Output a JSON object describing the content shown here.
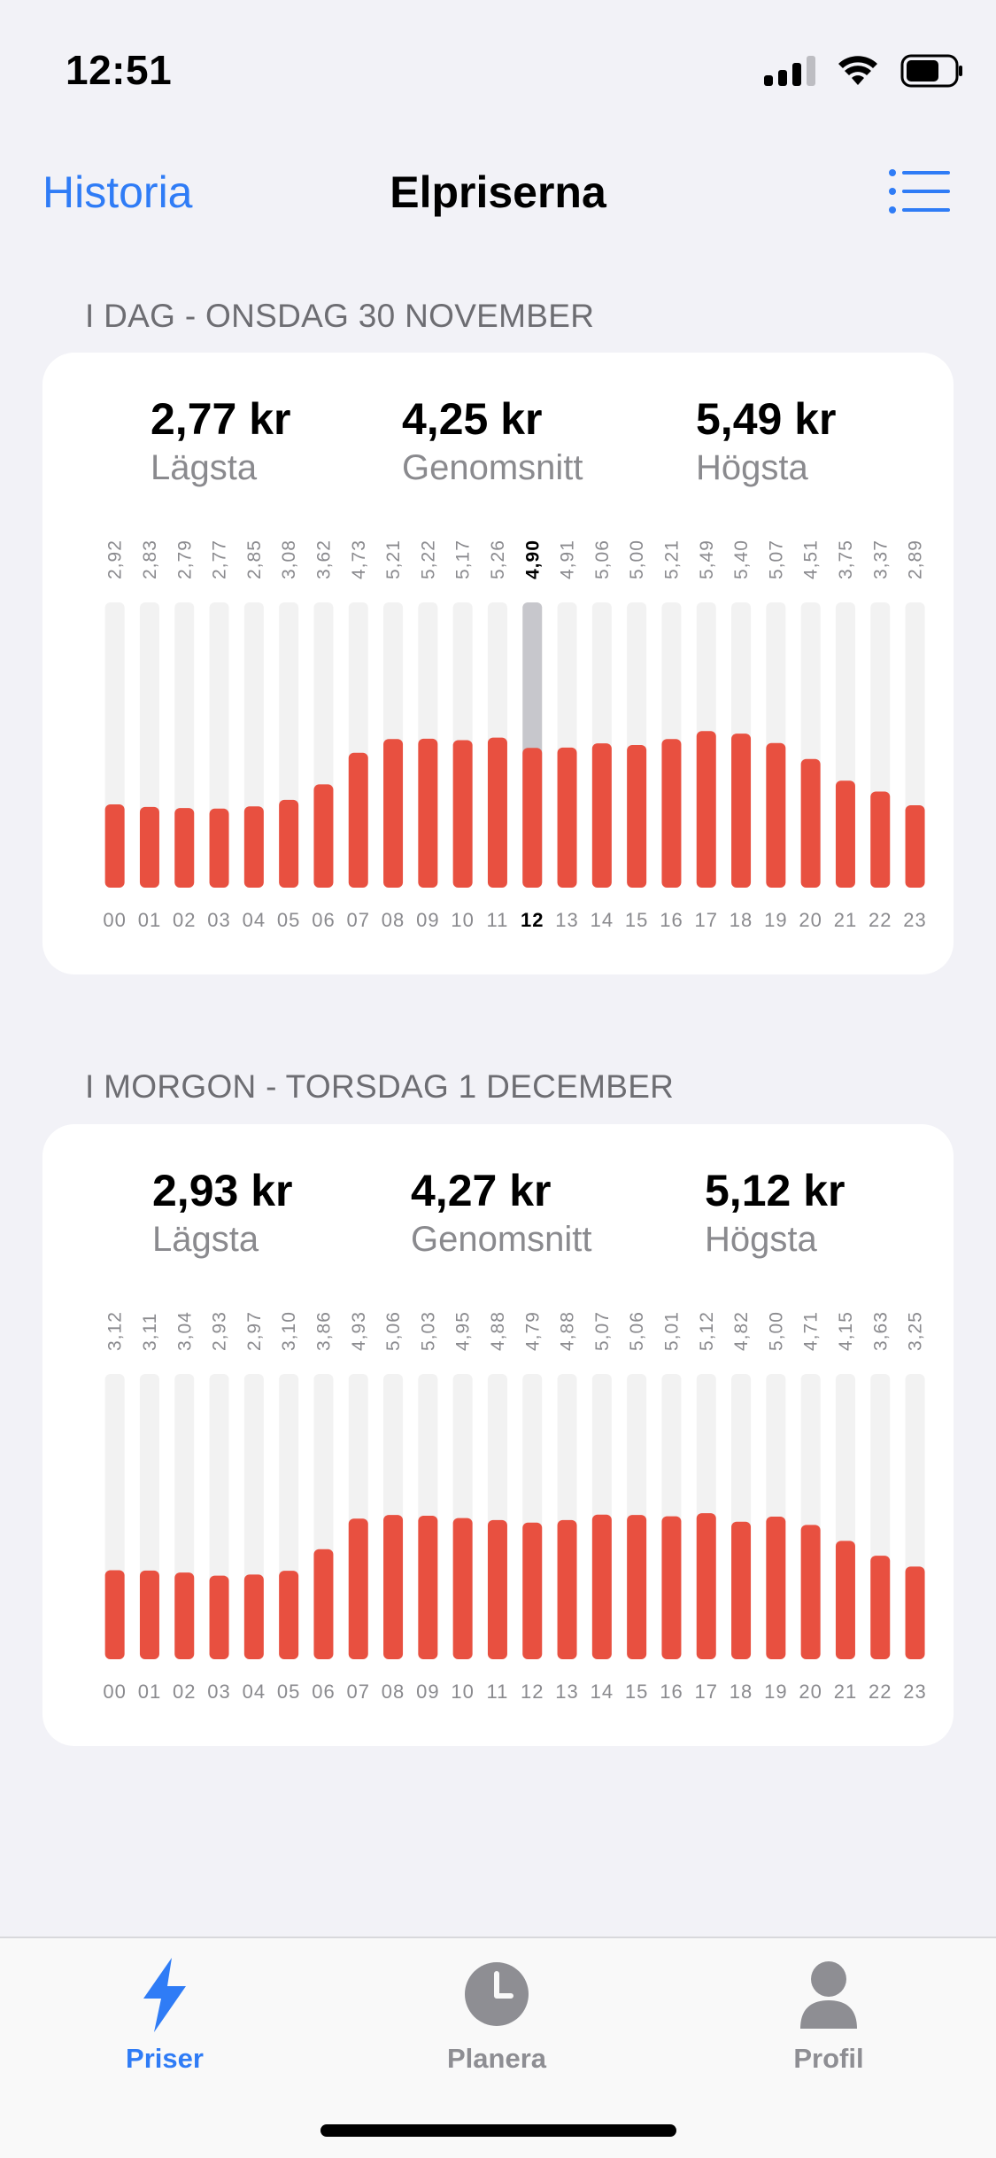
{
  "status_bar": {
    "time": "12:51",
    "icons": [
      "signal-icon",
      "wifi-icon",
      "battery-icon"
    ]
  },
  "nav": {
    "back_label": "Historia",
    "title": "Elpriserna",
    "right_icon": "list-icon"
  },
  "colors": {
    "accent": "#2F7CF6",
    "bar_red": "#E85040",
    "bar_track": "#F2F2F2",
    "bar_highlight": "#C7C7CC",
    "muted_text": "#8A8A8E"
  },
  "today": {
    "header": "I DAG - ONSDAG 30 NOVEMBER",
    "summary": {
      "min_value": "2,77 kr",
      "min_label": "Lägsta",
      "avg_value": "4,25 kr",
      "avg_label": "Genomsnitt",
      "max_value": "5,49 kr",
      "max_label": "Högsta"
    }
  },
  "tomorrow": {
    "header": "I MORGON - TORSDAG 1 DECEMBER",
    "summary": {
      "min_value": "2,93 kr",
      "min_label": "Lägsta",
      "avg_value": "4,27 kr",
      "avg_label": "Genomsnitt",
      "max_value": "5,12 kr",
      "max_label": "Högsta"
    }
  },
  "chart_data": [
    {
      "type": "bar",
      "categories": [
        "00",
        "01",
        "02",
        "03",
        "04",
        "05",
        "06",
        "07",
        "08",
        "09",
        "10",
        "11",
        "12",
        "13",
        "14",
        "15",
        "16",
        "17",
        "18",
        "19",
        "20",
        "21",
        "22",
        "23"
      ],
      "value_labels": [
        "2,92",
        "2,83",
        "2,79",
        "2,77",
        "2,85",
        "3,08",
        "3,62",
        "4,73",
        "5,21",
        "5,22",
        "5,17",
        "5,26",
        "4,90",
        "4,91",
        "5,06",
        "5,00",
        "5,21",
        "5,49",
        "5,40",
        "5,07",
        "4,51",
        "3,75",
        "3,37",
        "2,89"
      ],
      "values": [
        2.92,
        2.83,
        2.79,
        2.77,
        2.85,
        3.08,
        3.62,
        4.73,
        5.21,
        5.22,
        5.17,
        5.26,
        4.9,
        4.91,
        5.06,
        5.0,
        5.21,
        5.49,
        5.4,
        5.07,
        4.51,
        3.75,
        3.37,
        2.89
      ],
      "ylim": [
        0,
        10
      ],
      "highlight_index": 12
    },
    {
      "type": "bar",
      "categories": [
        "00",
        "01",
        "02",
        "03",
        "04",
        "05",
        "06",
        "07",
        "08",
        "09",
        "10",
        "11",
        "12",
        "13",
        "14",
        "15",
        "16",
        "17",
        "18",
        "19",
        "20",
        "21",
        "22",
        "23"
      ],
      "value_labels": [
        "3,12",
        "3,11",
        "3,04",
        "2,93",
        "2,97",
        "3,10",
        "3,86",
        "4,93",
        "5,06",
        "5,03",
        "4,95",
        "4,88",
        "4,79",
        "4,88",
        "5,07",
        "5,06",
        "5,01",
        "5,12",
        "4,82",
        "5,00",
        "4,71",
        "4,15",
        "3,63",
        "3,25"
      ],
      "values": [
        3.12,
        3.11,
        3.04,
        2.93,
        2.97,
        3.1,
        3.86,
        4.93,
        5.06,
        5.03,
        4.95,
        4.88,
        4.79,
        4.88,
        5.07,
        5.06,
        5.01,
        5.12,
        4.82,
        5.0,
        4.71,
        4.15,
        3.63,
        3.25
      ],
      "ylim": [
        0,
        10
      ],
      "highlight_index": -1
    }
  ],
  "tabbar": {
    "tabs": [
      {
        "label": "Priser",
        "icon": "bolt-icon",
        "active": true
      },
      {
        "label": "Planera",
        "icon": "clock-icon",
        "active": false
      },
      {
        "label": "Profil",
        "icon": "person-icon",
        "active": false
      }
    ]
  }
}
